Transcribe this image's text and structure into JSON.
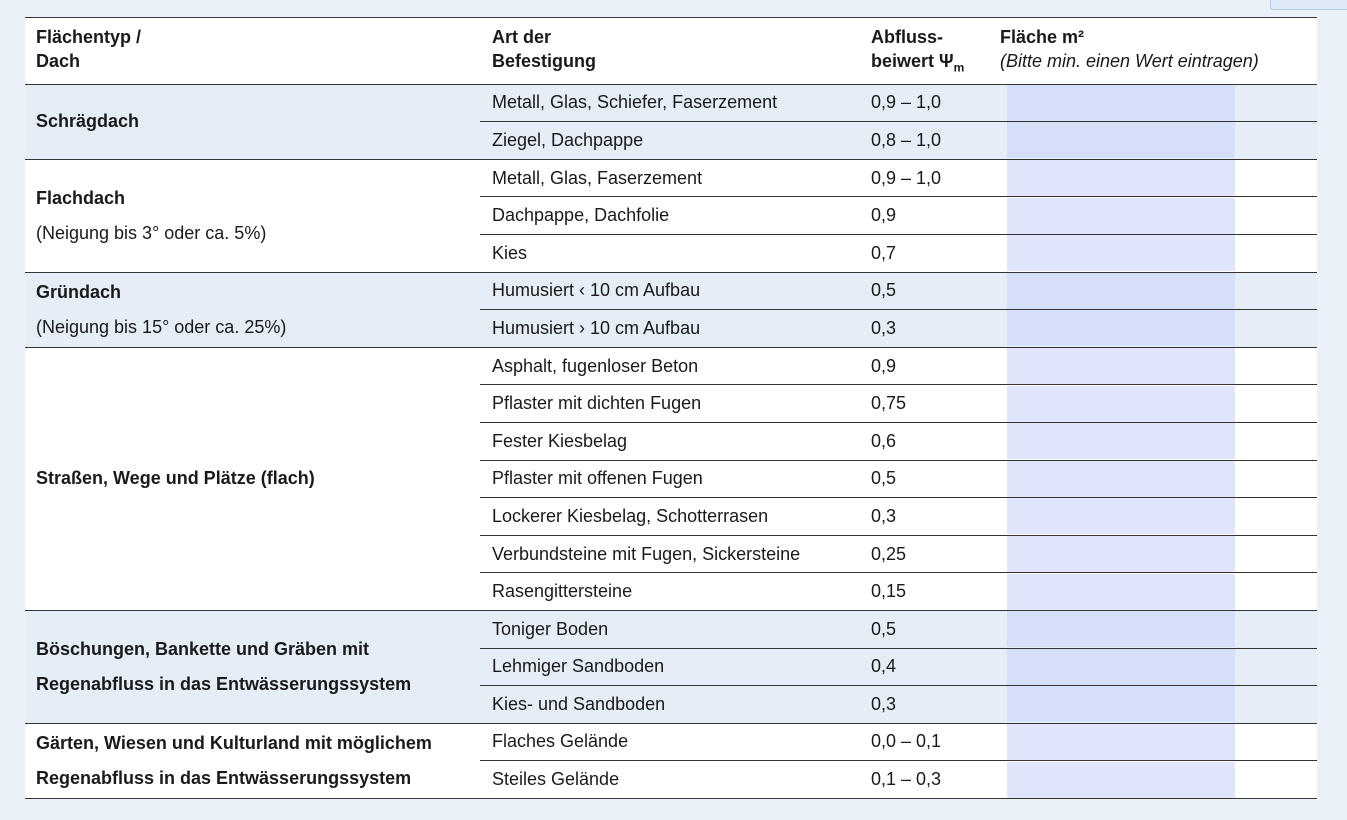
{
  "header": {
    "type": [
      "Flächentyp /",
      "Dach"
    ],
    "art": [
      "Art der",
      "Befestigung"
    ],
    "wert": [
      "Abfluss-",
      "beiwert Ψ",
      "m"
    ],
    "flaeche": [
      "Fläche m²",
      "(Bitte min. einen Wert eintragen)"
    ]
  },
  "groups": [
    {
      "name": [
        "Schrägdach"
      ],
      "rows": [
        {
          "art": "Metall, Glas, Schiefer, Faserzement",
          "wert": "0,9 – 1,0"
        },
        {
          "art": "Ziegel, Dachpappe",
          "wert": "0,8 – 1,0"
        }
      ]
    },
    {
      "name": [
        "Flachdach"
      ],
      "note": "(Neigung bis 3° oder ca. 5%)",
      "rows": [
        {
          "art": "Metall, Glas, Faserzement",
          "wert": "0,9 – 1,0"
        },
        {
          "art": "Dachpappe, Dachfolie",
          "wert": "0,9"
        },
        {
          "art": "Kies",
          "wert": "0,7"
        }
      ]
    },
    {
      "name": [
        "Gründach"
      ],
      "note": "(Neigung bis 15° oder ca. 25%)",
      "rows": [
        {
          "art": "Humusiert ‹ 10 cm Aufbau",
          "wert": "0,5"
        },
        {
          "art": "Humusiert › 10 cm Aufbau",
          "wert": "0,3"
        }
      ]
    },
    {
      "name": [
        "Straßen, Wege und Plätze (flach)"
      ],
      "rows": [
        {
          "art": "Asphalt, fugenloser Beton",
          "wert": "0,9"
        },
        {
          "art": "Pflaster mit dichten Fugen",
          "wert": "0,75"
        },
        {
          "art": "Fester Kiesbelag",
          "wert": "0,6"
        },
        {
          "art": "Pflaster mit offenen Fugen",
          "wert": "0,5"
        },
        {
          "art": "Lockerer Kiesbelag, Schotterrasen",
          "wert": "0,3"
        },
        {
          "art": "Verbundsteine mit Fugen, Sickersteine",
          "wert": "0,25"
        },
        {
          "art": "Rasengittersteine",
          "wert": "0,15"
        }
      ]
    },
    {
      "name": [
        "Böschungen, Bankette und Gräben mit",
        "Regenabfluss in das Entwässerungssystem"
      ],
      "rows": [
        {
          "art": "Toniger Boden",
          "wert": "0,5"
        },
        {
          "art": "Lehmiger Sandboden",
          "wert": "0,4"
        },
        {
          "art": "Kies- und Sandboden",
          "wert": "0,3"
        }
      ]
    },
    {
      "name": [
        "Gärten, Wiesen und Kulturland mit möglichem",
        "Regenabfluss in das Entwässerungssystem"
      ],
      "rows": [
        {
          "art": "Flaches Gelände",
          "wert": "0,0 – 0,1"
        },
        {
          "art": "Steiles Gelände",
          "wert": "0,1 – 0,3"
        }
      ]
    }
  ]
}
